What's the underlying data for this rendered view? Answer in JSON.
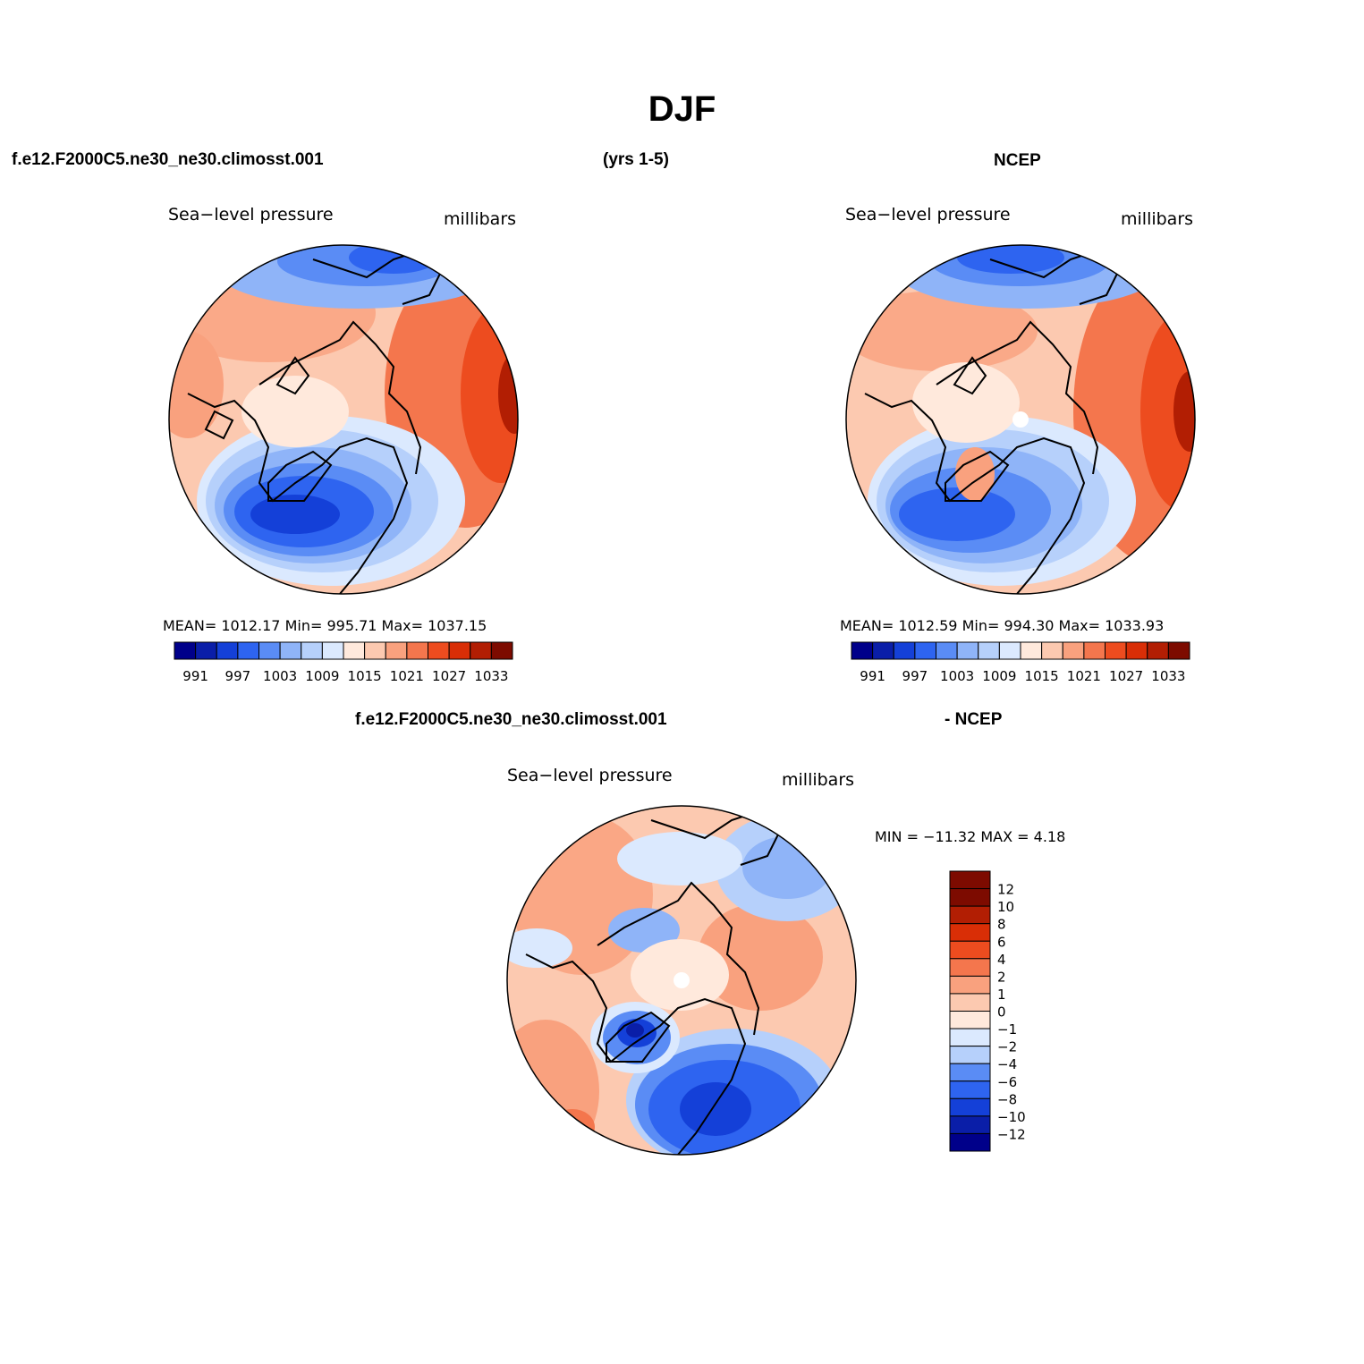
{
  "page": {
    "title": "DJF",
    "case_name": "f.e12.F2000C5.ne30_ne30.climosst.001",
    "years": "(yrs 1-5)",
    "obs_name": "NCEP",
    "diff_case": "f.e12.F2000C5.ne30_ne30.climosst.001",
    "diff_obs": "- NCEP"
  },
  "panels": {
    "model": {
      "variable": "Sea−level pressure",
      "units": "millibars",
      "stats": "MEAN= 1012.17   Min= 995.71   Max= 1037.15"
    },
    "obs": {
      "variable": "Sea−level pressure",
      "units": "millibars",
      "stats": "MEAN= 1012.59   Min= 994.30   Max= 1033.93"
    },
    "diff": {
      "variable": "Sea−level pressure",
      "units": "millibars",
      "stats": "MIN = −11.32 MAX =    4.18"
    }
  },
  "colorbar_abs": {
    "colors": [
      "#00008a",
      "#0a1ea8",
      "#1440d8",
      "#2e64f0",
      "#5a8cf5",
      "#8fb4f8",
      "#b6d0fb",
      "#dbe9fe",
      "#ffe9dc",
      "#fcc9b0",
      "#f9a17e",
      "#f4764d",
      "#ed4c1f",
      "#d92e06",
      "#b21e03",
      "#7d0b00"
    ],
    "tick_labels": [
      "991",
      "997",
      "1003",
      "1009",
      "1015",
      "1021",
      "1027",
      "1033"
    ]
  },
  "colorbar_diff": {
    "colors": [
      "#7d0b00",
      "#b21e03",
      "#d92e06",
      "#ed4c1f",
      "#f4764d",
      "#f9a17e",
      "#fcc9b0",
      "#ffe9dc",
      "#dbe9fe",
      "#b6d0fb",
      "#5a8cf5",
      "#2e64f0",
      "#1440d8",
      "#0a1ea8",
      "#00008a"
    ],
    "tick_labels": [
      "12",
      "10",
      "8",
      "6",
      "4",
      "2",
      "1",
      "0",
      "−1",
      "−2",
      "−4",
      "−6",
      "−8",
      "−10",
      "−12"
    ]
  }
}
